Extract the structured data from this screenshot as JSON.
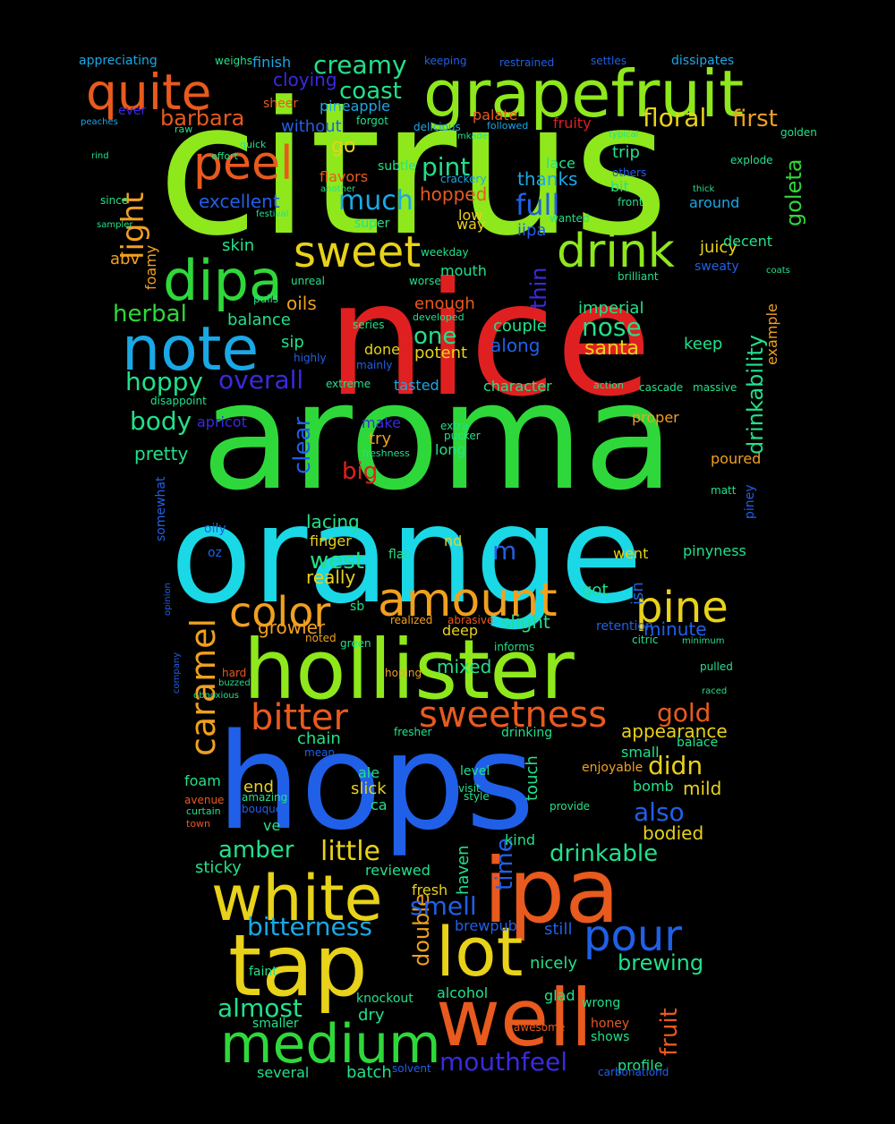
{
  "background": "#000000",
  "colors": {
    "lime": "#8ee81c",
    "green": "#2fd83a",
    "teal": "#22e08a",
    "cyan": "#1ad8e6",
    "sky": "#1aa8e6",
    "blue": "#2060e8",
    "indigo": "#3a2ae0",
    "red": "#e02020",
    "orange": "#e85a1e",
    "amber": "#f0a020",
    "yellow": "#e8d21a"
  },
  "words": [
    {
      "text": "citrus",
      "color": "lime"
    },
    {
      "text": "nice",
      "color": "red"
    },
    {
      "text": "aroma",
      "color": "green"
    },
    {
      "text": "orange",
      "color": "cyan"
    },
    {
      "text": "hops",
      "color": "blue"
    },
    {
      "text": "hollister",
      "color": "lime"
    },
    {
      "text": "grapefruit",
      "color": "lime"
    },
    {
      "text": "well",
      "color": "orange"
    },
    {
      "text": "ipa",
      "color": "orange"
    },
    {
      "text": "tap",
      "color": "yellow"
    },
    {
      "text": "white",
      "color": "yellow"
    },
    {
      "text": "lot",
      "color": "yellow"
    },
    {
      "text": "dipa",
      "color": "green"
    },
    {
      "text": "note",
      "color": "sky"
    },
    {
      "text": "medium",
      "color": "green"
    },
    {
      "text": "quite",
      "color": "orange"
    },
    {
      "text": "peel",
      "color": "orange"
    },
    {
      "text": "sweet",
      "color": "yellow"
    },
    {
      "text": "drink",
      "color": "lime"
    },
    {
      "text": "amount",
      "color": "amber"
    },
    {
      "text": "color",
      "color": "amber"
    },
    {
      "text": "pine",
      "color": "yellow"
    },
    {
      "text": "sweetness",
      "color": "orange"
    },
    {
      "text": "bitter",
      "color": "orange"
    },
    {
      "text": "caramel",
      "color": "amber"
    },
    {
      "text": "pour",
      "color": "blue"
    },
    {
      "text": "creamy",
      "color": "teal"
    },
    {
      "text": "coast",
      "color": "teal"
    },
    {
      "text": "barbara",
      "color": "orange"
    },
    {
      "text": "floral",
      "color": "yellow"
    },
    {
      "text": "first",
      "color": "amber"
    },
    {
      "text": "light",
      "color": "amber"
    },
    {
      "text": "much",
      "color": "sky"
    },
    {
      "text": "pint",
      "color": "teal"
    },
    {
      "text": "full",
      "color": "blue"
    },
    {
      "text": "goleta",
      "color": "green"
    },
    {
      "text": "drinkability",
      "color": "teal"
    },
    {
      "text": "herbal",
      "color": "green"
    },
    {
      "text": "hoppy",
      "color": "teal"
    },
    {
      "text": "overall",
      "color": "indigo"
    },
    {
      "text": "body",
      "color": "teal"
    },
    {
      "text": "nose",
      "color": "teal"
    },
    {
      "text": "one",
      "color": "teal"
    },
    {
      "text": "clear",
      "color": "blue"
    },
    {
      "text": "west",
      "color": "teal"
    },
    {
      "text": "big",
      "color": "red"
    },
    {
      "text": "thin",
      "color": "indigo"
    },
    {
      "text": "santa",
      "color": "yellow"
    },
    {
      "text": "drinkable",
      "color": "teal"
    },
    {
      "text": "little",
      "color": "yellow"
    },
    {
      "text": "amber",
      "color": "teal"
    },
    {
      "text": "bitterness",
      "color": "sky"
    },
    {
      "text": "almost",
      "color": "teal"
    },
    {
      "text": "mouthfeel",
      "color": "indigo"
    },
    {
      "text": "brewing",
      "color": "teal"
    },
    {
      "text": "double",
      "color": "amber"
    },
    {
      "text": "smell",
      "color": "blue"
    },
    {
      "text": "appearance",
      "color": "yellow"
    },
    {
      "text": "gold",
      "color": "orange"
    },
    {
      "text": "didn",
      "color": "yellow"
    },
    {
      "text": "also",
      "color": "blue"
    },
    {
      "text": "fruit",
      "color": "orange"
    },
    {
      "text": "time",
      "color": "blue"
    },
    {
      "text": "mild",
      "color": "yellow"
    },
    {
      "text": "bodied",
      "color": "yellow"
    },
    {
      "text": "growler",
      "color": "amber"
    },
    {
      "text": "slight",
      "color": "teal"
    },
    {
      "text": "minute",
      "color": "blue"
    },
    {
      "text": "mixed",
      "color": "teal"
    },
    {
      "text": "really",
      "color": "yellow"
    },
    {
      "text": "lacing",
      "color": "teal"
    },
    {
      "text": "finger",
      "color": "yellow"
    },
    {
      "text": "m",
      "color": "blue"
    },
    {
      "text": "pinyness",
      "color": "teal"
    },
    {
      "text": "went",
      "color": "yellow"
    },
    {
      "text": "got",
      "color": "teal"
    },
    {
      "text": "isn",
      "color": "blue"
    },
    {
      "text": "imperial",
      "color": "teal"
    },
    {
      "text": "keep",
      "color": "teal"
    },
    {
      "text": "along",
      "color": "blue"
    },
    {
      "text": "couple",
      "color": "teal"
    },
    {
      "text": "potent",
      "color": "yellow"
    },
    {
      "text": "enough",
      "color": "orange"
    },
    {
      "text": "balance",
      "color": "teal"
    },
    {
      "text": "oils",
      "color": "amber"
    },
    {
      "text": "sip",
      "color": "teal"
    },
    {
      "text": "skin",
      "color": "teal"
    },
    {
      "text": "abv",
      "color": "amber"
    },
    {
      "text": "foamy",
      "color": "amber"
    },
    {
      "text": "excellent",
      "color": "blue"
    },
    {
      "text": "go",
      "color": "yellow"
    },
    {
      "text": "hopped",
      "color": "orange"
    },
    {
      "text": "thanks",
      "color": "sky"
    },
    {
      "text": "iipa",
      "color": "blue"
    },
    {
      "text": "juicy",
      "color": "yellow"
    },
    {
      "text": "decent",
      "color": "teal"
    },
    {
      "text": "around",
      "color": "sky"
    },
    {
      "text": "trip",
      "color": "teal"
    },
    {
      "text": "bit",
      "color": "teal"
    },
    {
      "text": "lace",
      "color": "teal"
    },
    {
      "text": "fruity",
      "color": "red"
    },
    {
      "text": "palate",
      "color": "orange"
    },
    {
      "text": "pineapple",
      "color": "sky"
    },
    {
      "text": "cloying",
      "color": "indigo"
    },
    {
      "text": "without",
      "color": "blue"
    },
    {
      "text": "finish",
      "color": "sky"
    },
    {
      "text": "flavors",
      "color": "orange"
    },
    {
      "text": "subtle",
      "color": "teal"
    },
    {
      "text": "low",
      "color": "yellow"
    },
    {
      "text": "way",
      "color": "yellow"
    },
    {
      "text": "mouth",
      "color": "teal"
    },
    {
      "text": "deep",
      "color": "yellow"
    },
    {
      "text": "done",
      "color": "yellow"
    },
    {
      "text": "sb",
      "color": "teal"
    },
    {
      "text": "nd",
      "color": "yellow"
    },
    {
      "text": "try",
      "color": "amber"
    },
    {
      "text": "long",
      "color": "teal"
    },
    {
      "text": "make",
      "color": "indigo"
    },
    {
      "text": "tasted",
      "color": "sky"
    },
    {
      "text": "character",
      "color": "teal"
    },
    {
      "text": "apricot",
      "color": "indigo"
    },
    {
      "text": "pretty",
      "color": "teal"
    },
    {
      "text": "ale",
      "color": "teal"
    },
    {
      "text": "slick",
      "color": "yellow"
    },
    {
      "text": "ca",
      "color": "teal"
    },
    {
      "text": "end",
      "color": "yellow"
    },
    {
      "text": "ve",
      "color": "teal"
    },
    {
      "text": "foam",
      "color": "teal"
    },
    {
      "text": "chain",
      "color": "teal"
    },
    {
      "text": "sticky",
      "color": "teal"
    },
    {
      "text": "reviewed",
      "color": "teal"
    },
    {
      "text": "fresh",
      "color": "yellow"
    },
    {
      "text": "haven",
      "color": "teal"
    },
    {
      "text": "kind",
      "color": "teal"
    },
    {
      "text": "brewpub",
      "color": "blue"
    },
    {
      "text": "still",
      "color": "blue"
    },
    {
      "text": "nicely",
      "color": "teal"
    },
    {
      "text": "alcohol",
      "color": "teal"
    },
    {
      "text": "dry",
      "color": "teal"
    },
    {
      "text": "batch",
      "color": "teal"
    },
    {
      "text": "several",
      "color": "teal"
    },
    {
      "text": "profile",
      "color": "teal"
    },
    {
      "text": "touch",
      "color": "teal"
    },
    {
      "text": "bomb",
      "color": "teal"
    },
    {
      "text": "small",
      "color": "teal"
    },
    {
      "text": "level",
      "color": "teal"
    },
    {
      "text": "enjoyable",
      "color": "amber"
    },
    {
      "text": "drinking",
      "color": "teal"
    },
    {
      "text": "faint",
      "color": "teal"
    },
    {
      "text": "glad",
      "color": "teal"
    },
    {
      "text": "smaller",
      "color": "teal"
    },
    {
      "text": "knockout",
      "color": "teal"
    },
    {
      "text": "shows",
      "color": "teal"
    },
    {
      "text": "wrong",
      "color": "teal"
    },
    {
      "text": "honey",
      "color": "orange"
    },
    {
      "text": "dissipates",
      "color": "sky"
    },
    {
      "text": "appreciating",
      "color": "sky"
    },
    {
      "text": "weighs",
      "color": "teal"
    },
    {
      "text": "keeping",
      "color": "blue"
    },
    {
      "text": "restrained",
      "color": "blue"
    },
    {
      "text": "settles",
      "color": "blue"
    },
    {
      "text": "typical",
      "color": "teal"
    },
    {
      "text": "explode",
      "color": "teal"
    },
    {
      "text": "golden",
      "color": "teal"
    },
    {
      "text": "delicious",
      "color": "sky"
    },
    {
      "text": "followed",
      "color": "sky"
    },
    {
      "text": "sheer",
      "color": "orange"
    },
    {
      "text": "forgot",
      "color": "teal"
    },
    {
      "text": "ever",
      "color": "indigo"
    },
    {
      "text": "peaches",
      "color": "sky"
    },
    {
      "text": "raw",
      "color": "teal"
    },
    {
      "text": "effort",
      "color": "teal"
    },
    {
      "text": "quick",
      "color": "teal"
    },
    {
      "text": "rind",
      "color": "teal"
    },
    {
      "text": "since",
      "color": "teal"
    },
    {
      "text": "sampler",
      "color": "teal"
    },
    {
      "text": "super",
      "color": "teal"
    },
    {
      "text": "front",
      "color": "teal"
    },
    {
      "text": "thick",
      "color": "teal"
    },
    {
      "text": "others",
      "color": "blue"
    },
    {
      "text": "wanted",
      "color": "teal"
    },
    {
      "text": "crackery",
      "color": "sky"
    },
    {
      "text": "another",
      "color": "teal"
    },
    {
      "text": "festival",
      "color": "teal"
    },
    {
      "text": "weekday",
      "color": "teal"
    },
    {
      "text": "unreal",
      "color": "teal"
    },
    {
      "text": "pulls",
      "color": "teal"
    },
    {
      "text": "worse",
      "color": "teal"
    },
    {
      "text": "developed",
      "color": "teal"
    },
    {
      "text": "brilliant",
      "color": "teal"
    },
    {
      "text": "sweaty",
      "color": "blue"
    },
    {
      "text": "coats",
      "color": "teal"
    },
    {
      "text": "series",
      "color": "teal"
    },
    {
      "text": "mainly",
      "color": "blue"
    },
    {
      "text": "highly",
      "color": "blue"
    },
    {
      "text": "example",
      "color": "amber"
    },
    {
      "text": "massive",
      "color": "teal"
    },
    {
      "text": "cascade",
      "color": "teal"
    },
    {
      "text": "action",
      "color": "teal"
    },
    {
      "text": "extreme",
      "color": "teal"
    },
    {
      "text": "disappoint",
      "color": "teal"
    },
    {
      "text": "freshness",
      "color": "teal"
    },
    {
      "text": "extra",
      "color": "teal"
    },
    {
      "text": "pucker",
      "color": "teal"
    },
    {
      "text": "proper",
      "color": "amber"
    },
    {
      "text": "poured",
      "color": "amber"
    },
    {
      "text": "matt",
      "color": "teal"
    },
    {
      "text": "piney",
      "color": "blue"
    },
    {
      "text": "somewhat",
      "color": "blue"
    },
    {
      "text": "oily",
      "color": "blue"
    },
    {
      "text": "oz",
      "color": "blue"
    },
    {
      "text": "flat",
      "color": "teal"
    },
    {
      "text": "retention",
      "color": "blue"
    },
    {
      "text": "citric",
      "color": "teal"
    },
    {
      "text": "minimum",
      "color": "teal"
    },
    {
      "text": "pulled",
      "color": "teal"
    },
    {
      "text": "raced",
      "color": "teal"
    },
    {
      "text": "realized",
      "color": "amber"
    },
    {
      "text": "abrasive",
      "color": "orange"
    },
    {
      "text": "informs",
      "color": "teal"
    },
    {
      "text": "noted",
      "color": "amber"
    },
    {
      "text": "green",
      "color": "teal"
    },
    {
      "text": "hoping",
      "color": "amber"
    },
    {
      "text": "fresher",
      "color": "teal"
    },
    {
      "text": "mean",
      "color": "blue"
    },
    {
      "text": "amazing",
      "color": "teal"
    },
    {
      "text": "bouquet",
      "color": "blue"
    },
    {
      "text": "avenue",
      "color": "orange"
    },
    {
      "text": "curtain",
      "color": "teal"
    },
    {
      "text": "town",
      "color": "orange"
    },
    {
      "text": "hard",
      "color": "orange"
    },
    {
      "text": "buzzed",
      "color": "teal"
    },
    {
      "text": "obnoxious",
      "color": "teal"
    },
    {
      "text": "company",
      "color": "blue"
    },
    {
      "text": "opinion",
      "color": "blue"
    },
    {
      "text": "balace",
      "color": "teal"
    },
    {
      "text": "visit",
      "color": "teal"
    },
    {
      "text": "style",
      "color": "teal"
    },
    {
      "text": "provide",
      "color": "teal"
    },
    {
      "text": "carbonationd",
      "color": "blue"
    },
    {
      "text": "solvent",
      "color": "blue"
    },
    {
      "text": "mkade",
      "color": "teal"
    },
    {
      "text": "awesome",
      "color": "orange"
    }
  ]
}
